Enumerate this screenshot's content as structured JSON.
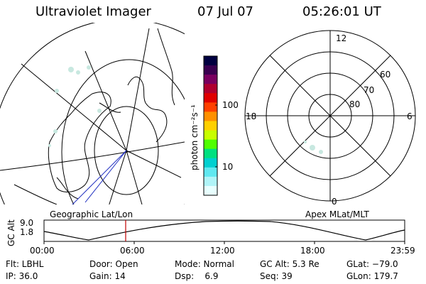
{
  "header": {
    "title": "Ultraviolet Imager",
    "date": "07 Jul 07",
    "time": "05:26:01 UT"
  },
  "colorbar": {
    "label": "photon cm⁻²s⁻¹",
    "ticks": [
      "100",
      "10"
    ],
    "colors": [
      "#000040",
      "#3a0050",
      "#7a0060",
      "#b00030",
      "#e00000",
      "#ff4000",
      "#ff9000",
      "#ffd000",
      "#c8ff00",
      "#50ff00",
      "#00e080",
      "#00d0d0",
      "#60e8f0",
      "#b0f4f8",
      "#e8ffff"
    ]
  },
  "polar_plot": {
    "mlt_labels": [
      "12",
      "18",
      "6",
      "0"
    ],
    "lat_labels": [
      "60",
      "70",
      "80"
    ]
  },
  "strip": {
    "left_title": "Geographic Lat/Lon",
    "right_title": "Apex MLat/MLT",
    "axis_title": "GC Alt",
    "y_labels": [
      "9.0",
      "1.8"
    ],
    "time_ticks": [
      "00:00",
      "06:00",
      "12:00",
      "18:00",
      "23:59"
    ]
  },
  "info": {
    "row1": [
      "Flt: LBHL",
      "Door: Open",
      "Mode: Normal",
      "GC Alt: 5.3 Re",
      "GLat: −79.0"
    ],
    "row2": [
      "IP: 36.0",
      "Gain: 14",
      "Dsp:    6.9",
      "Seq: 39",
      "GLon: 179.7"
    ]
  }
}
